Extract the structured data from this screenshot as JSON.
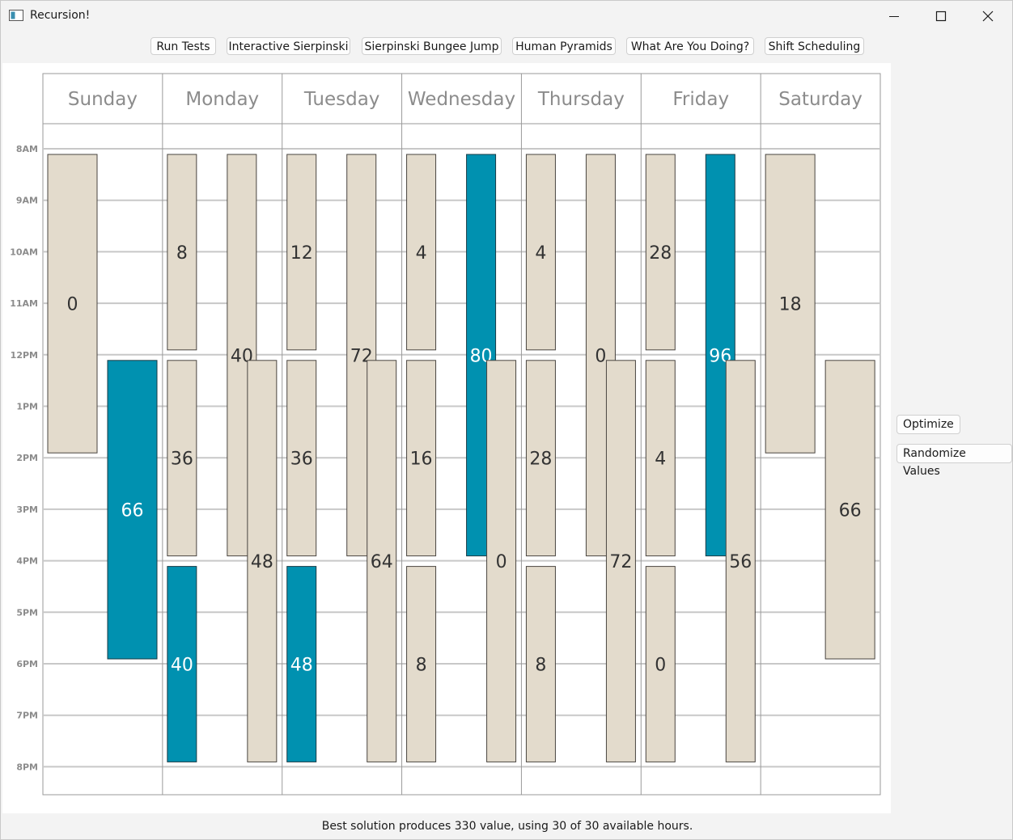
{
  "window": {
    "title": "Recursion!"
  },
  "toolbar": {
    "buttons": [
      "Run Tests",
      "Interactive Sierpinski",
      "Sierpinski Bungee Jump",
      "Human Pyramids",
      "What Are You Doing?",
      "Shift Scheduling"
    ]
  },
  "sidebar": {
    "optimize_label": "Optimize",
    "randomize_label": "Randomize Values"
  },
  "status": {
    "text": "Best solution produces 330 value, using 30 of 30 available hours."
  },
  "colors": {
    "selected": "#0091b0",
    "unselected": "#e3dbcc",
    "grid": "#c8c8c8",
    "header_text": "#8c8c8c"
  },
  "schedule": {
    "days": [
      "Sunday",
      "Monday",
      "Tuesday",
      "Wednesday",
      "Thursday",
      "Friday",
      "Saturday"
    ],
    "hours": [
      "8AM",
      "9AM",
      "10AM",
      "11AM",
      "12PM",
      "1PM",
      "2PM",
      "3PM",
      "4PM",
      "5PM",
      "6PM",
      "7PM",
      "8PM"
    ],
    "shifts": [
      {
        "day": 0,
        "lane": 0,
        "start": 8,
        "end": 14,
        "value": "0",
        "selected": false
      },
      {
        "day": 0,
        "lane": 1,
        "start": 12,
        "end": 18,
        "value": "66",
        "selected": true
      },
      {
        "day": 1,
        "lane": 0,
        "start": 8,
        "end": 12,
        "value": "8",
        "selected": false
      },
      {
        "day": 1,
        "lane": 0,
        "start": 12,
        "end": 16,
        "value": "36",
        "selected": false
      },
      {
        "day": 1,
        "lane": 0,
        "start": 16,
        "end": 20,
        "value": "40",
        "selected": true
      },
      {
        "day": 1,
        "lane": 1,
        "start": 8,
        "end": 16,
        "value": "40",
        "selected": false
      },
      {
        "day": 1,
        "lane": 2,
        "start": 12,
        "end": 20,
        "value": "48",
        "selected": false
      },
      {
        "day": 2,
        "lane": 0,
        "start": 8,
        "end": 12,
        "value": "12",
        "selected": false
      },
      {
        "day": 2,
        "lane": 0,
        "start": 12,
        "end": 16,
        "value": "36",
        "selected": false
      },
      {
        "day": 2,
        "lane": 0,
        "start": 16,
        "end": 20,
        "value": "48",
        "selected": true
      },
      {
        "day": 2,
        "lane": 1,
        "start": 8,
        "end": 16,
        "value": "72",
        "selected": false
      },
      {
        "day": 2,
        "lane": 2,
        "start": 12,
        "end": 20,
        "value": "64",
        "selected": false
      },
      {
        "day": 3,
        "lane": 0,
        "start": 8,
        "end": 12,
        "value": "4",
        "selected": false
      },
      {
        "day": 3,
        "lane": 0,
        "start": 12,
        "end": 16,
        "value": "16",
        "selected": false
      },
      {
        "day": 3,
        "lane": 0,
        "start": 16,
        "end": 20,
        "value": "8",
        "selected": false
      },
      {
        "day": 3,
        "lane": 1,
        "start": 8,
        "end": 16,
        "value": "80",
        "selected": true
      },
      {
        "day": 3,
        "lane": 2,
        "start": 12,
        "end": 20,
        "value": "0",
        "selected": false
      },
      {
        "day": 4,
        "lane": 0,
        "start": 8,
        "end": 12,
        "value": "4",
        "selected": false
      },
      {
        "day": 4,
        "lane": 0,
        "start": 12,
        "end": 16,
        "value": "28",
        "selected": false
      },
      {
        "day": 4,
        "lane": 0,
        "start": 16,
        "end": 20,
        "value": "8",
        "selected": false
      },
      {
        "day": 4,
        "lane": 1,
        "start": 8,
        "end": 16,
        "value": "0",
        "selected": false
      },
      {
        "day": 4,
        "lane": 2,
        "start": 12,
        "end": 20,
        "value": "72",
        "selected": false
      },
      {
        "day": 5,
        "lane": 0,
        "start": 8,
        "end": 12,
        "value": "28",
        "selected": false
      },
      {
        "day": 5,
        "lane": 0,
        "start": 12,
        "end": 16,
        "value": "4",
        "selected": false
      },
      {
        "day": 5,
        "lane": 0,
        "start": 16,
        "end": 20,
        "value": "0",
        "selected": false
      },
      {
        "day": 5,
        "lane": 1,
        "start": 8,
        "end": 16,
        "value": "96",
        "selected": true
      },
      {
        "day": 5,
        "lane": 2,
        "start": 12,
        "end": 20,
        "value": "56",
        "selected": false
      },
      {
        "day": 6,
        "lane": 0,
        "start": 8,
        "end": 14,
        "value": "18",
        "selected": false
      },
      {
        "day": 6,
        "lane": 1,
        "start": 12,
        "end": 18,
        "value": "66",
        "selected": false
      }
    ]
  }
}
